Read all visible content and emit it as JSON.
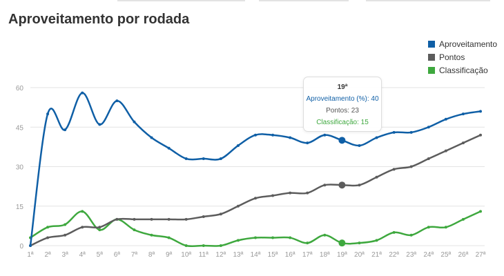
{
  "chart_data": {
    "type": "line",
    "title": "Aproveitamento por rodada",
    "xlabel": "",
    "ylabel": "",
    "ylim": [
      0,
      60
    ],
    "yticks": [
      "0",
      "15",
      "30",
      "45",
      "60"
    ],
    "yticks_values": [
      0,
      15,
      30,
      45,
      60
    ],
    "categories": [
      "1ª",
      "2ª",
      "3ª",
      "4ª",
      "5ª",
      "6ª",
      "7ª",
      "8ª",
      "9ª",
      "10ª",
      "11ª",
      "12ª",
      "13ª",
      "14ª",
      "15ª",
      "16ª",
      "17ª",
      "18ª",
      "19ª",
      "20ª",
      "21ª",
      "22ª",
      "23ª",
      "24ª",
      "25ª",
      "26ª",
      "27ª"
    ],
    "legend_position": "top-right",
    "grid": true,
    "series": [
      {
        "name": "Aproveitamento",
        "color": "#0f5fa6",
        "values": [
          0,
          50,
          44,
          58,
          46,
          55,
          47,
          41,
          37,
          33,
          33,
          33,
          38,
          42,
          42,
          41,
          39,
          42,
          40,
          38,
          41,
          43,
          43,
          45,
          48,
          50,
          51
        ]
      },
      {
        "name": "Pontos",
        "color": "#5c5c5c",
        "values": [
          0,
          3,
          4,
          7,
          7,
          10,
          10,
          10,
          10,
          10,
          11,
          12,
          15,
          18,
          19,
          20,
          20,
          23,
          23,
          23,
          26,
          29,
          30,
          33,
          36,
          39,
          42
        ]
      },
      {
        "name": "Classificação",
        "color": "#3ea83e",
        "values": [
          3,
          7,
          8,
          13,
          6,
          10,
          6,
          4,
          3,
          0,
          0,
          0,
          2,
          3,
          3,
          3,
          1,
          4,
          1,
          1,
          2,
          5,
          4,
          7,
          7,
          10,
          13
        ]
      }
    ],
    "highlight_index": 18,
    "tooltip": {
      "header": "19ª",
      "lines": [
        "Aproveitamento (%): 40",
        "Pontos: 23",
        "Classificação: 15"
      ]
    }
  }
}
